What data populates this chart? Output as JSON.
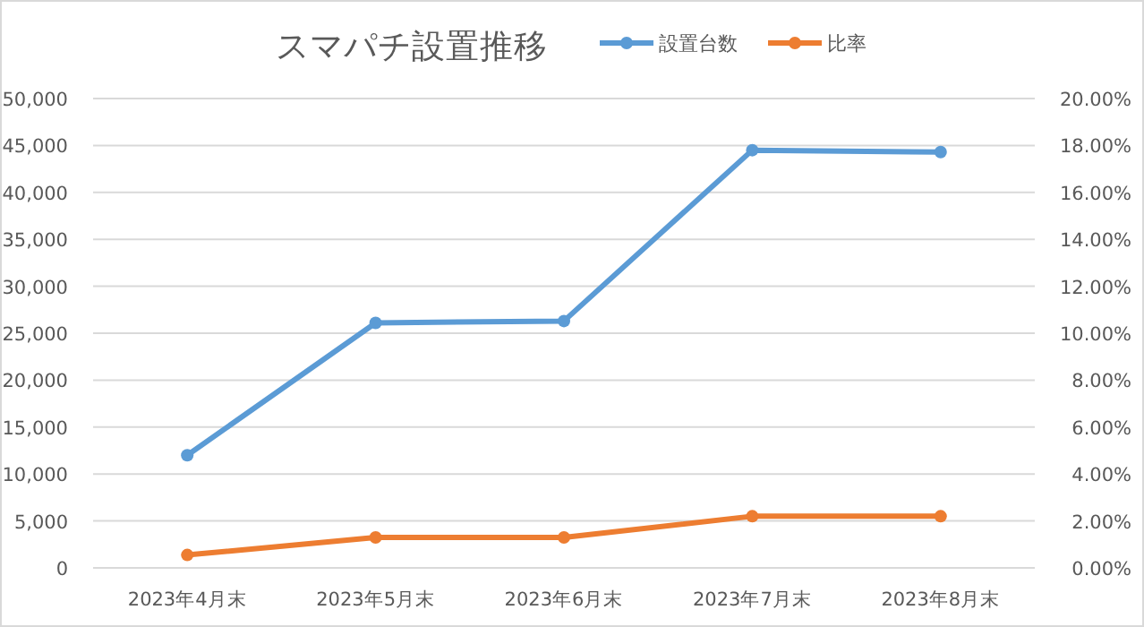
{
  "chart_data": {
    "type": "line",
    "title": "スマパチ設置推移",
    "categories": [
      "2023年4月末",
      "2023年5月末",
      "2023年6月末",
      "2023年7月末",
      "2023年8月末"
    ],
    "series": [
      {
        "name": "設置台数",
        "color": "#5b9bd5",
        "values": [
          12000,
          26100,
          26300,
          44500,
          44300
        ]
      },
      {
        "name": "比率",
        "color": "#ed7d31",
        "axis": "y2",
        "values": [
          0.55,
          1.3,
          1.3,
          2.2,
          2.2
        ]
      }
    ],
    "ylim": [
      0,
      50000
    ],
    "yticks": [
      0,
      {
        "value": 5000,
        "label": "5,000"
      },
      {
        "value": 10000,
        "label": "10,000"
      },
      {
        "value": 15000,
        "label": "15,000"
      },
      {
        "value": 20000,
        "label": "20,000"
      },
      {
        "value": 25000,
        "label": "25,000"
      },
      {
        "value": 30000,
        "label": "30,000"
      },
      {
        "value": 35000,
        "label": "35,000"
      },
      {
        "value": 40000,
        "label": "40,000"
      },
      {
        "value": 45000,
        "label": "45,000"
      },
      {
        "value": 50000,
        "label": "50,000"
      }
    ],
    "y2lim": [
      0,
      20
    ],
    "y2ticks": [
      {
        "value": 0,
        "label": "0.00%"
      },
      {
        "value": 2,
        "label": "2.00%"
      },
      {
        "value": 4,
        "label": "4.00%"
      },
      {
        "value": 6,
        "label": "6.00%"
      },
      {
        "value": 8,
        "label": "8.00%"
      },
      {
        "value": 10,
        "label": "10.00%"
      },
      {
        "value": 12,
        "label": "12.00%"
      },
      {
        "value": 14,
        "label": "14.00%"
      },
      {
        "value": 16,
        "label": "16.00%"
      },
      {
        "value": 18,
        "label": "18.00%"
      },
      {
        "value": 20,
        "label": "20.00%"
      }
    ],
    "grid": "y",
    "legend": "top",
    "marker": "circle",
    "line_style": "solid"
  }
}
